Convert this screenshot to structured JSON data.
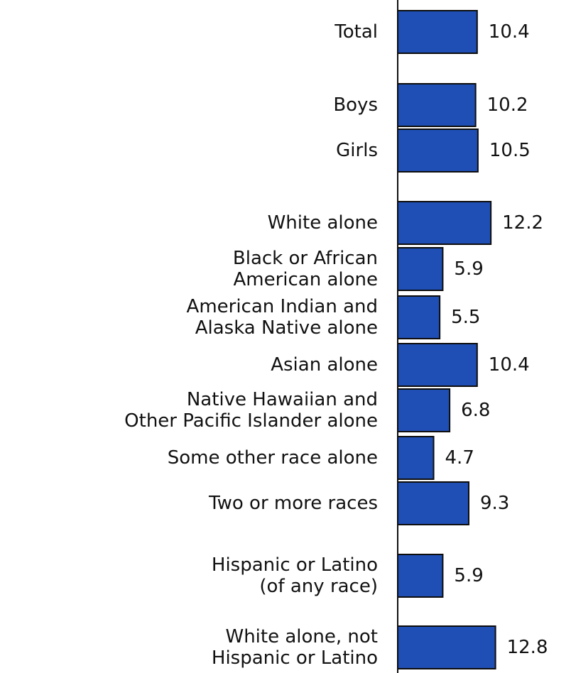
{
  "chart_data": {
    "type": "bar",
    "orientation": "horizontal",
    "title": "",
    "xlabel": "",
    "ylabel": "",
    "xlim": [
      0,
      14
    ],
    "grid": false,
    "legend": "none",
    "bar_color": "#1f4fb4",
    "categories": [
      [
        "Total"
      ],
      [
        "Boys"
      ],
      [
        "Girls"
      ],
      [
        "White alone"
      ],
      [
        "Black or African",
        "American alone"
      ],
      [
        "American Indian and",
        "Alaska Native alone"
      ],
      [
        "Asian alone"
      ],
      [
        "Native Hawaiian and",
        "Other Pacific Islander alone"
      ],
      [
        "Some other race alone"
      ],
      [
        "Two or more races"
      ],
      [
        "Hispanic or Latino",
        "(of any race)"
      ],
      [
        "White alone, not",
        "Hispanic or Latino"
      ]
    ],
    "values": [
      10.4,
      10.2,
      10.5,
      12.2,
      5.9,
      5.5,
      10.4,
      6.8,
      4.7,
      9.3,
      5.9,
      12.8
    ],
    "value_labels": [
      "10.4",
      "10.2",
      "10.5",
      "12.2",
      "5.9",
      "5.5",
      "10.4",
      "6.8",
      "4.7",
      "9.3",
      "5.9",
      "12.8"
    ]
  }
}
